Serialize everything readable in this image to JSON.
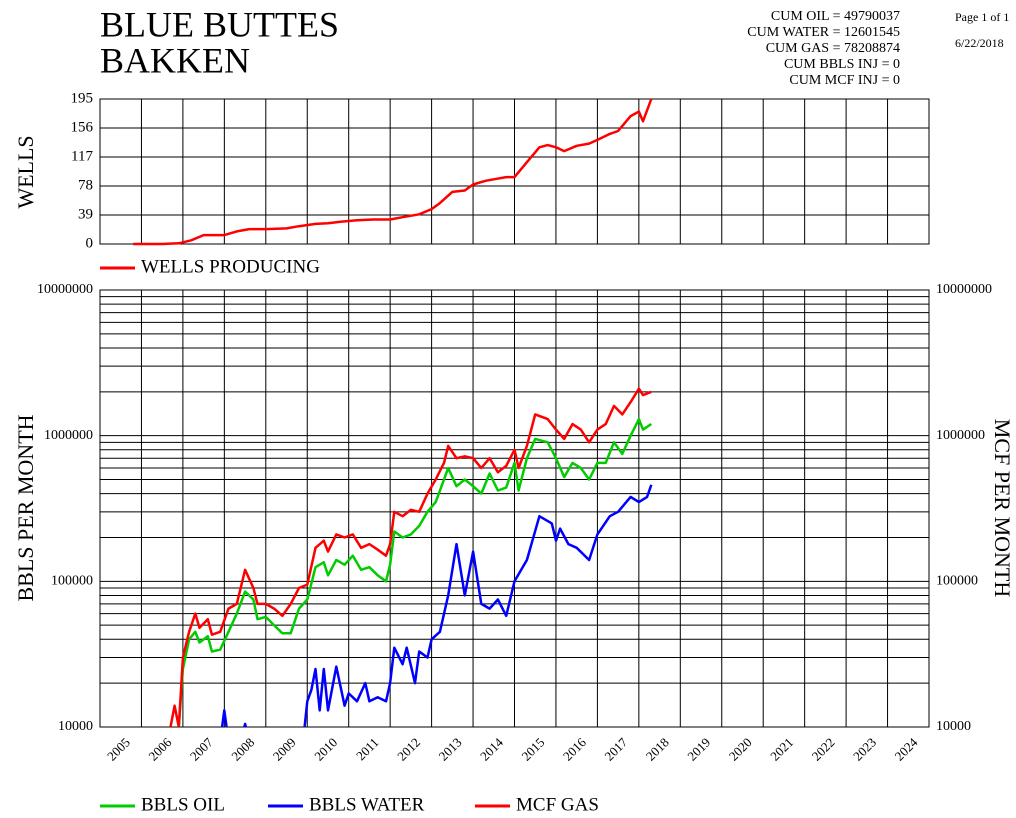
{
  "header": {
    "title_lines": [
      "BLUE BUTTES",
      "BAKKEN"
    ],
    "stats": [
      "CUM OIL = 49790037",
      "CUM WATER = 12601545",
      "CUM GAS = 78208874",
      "CUM BBLS INJ = 0",
      "CUM MCF INJ = 0"
    ],
    "page": "Page 1 of 1",
    "date": "6/22/2018"
  },
  "chart_data": [
    {
      "type": "line",
      "ylabel": "WELLS",
      "xlim": [
        2005,
        2025
      ],
      "xticks": [
        2005,
        2006,
        2007,
        2008,
        2009,
        2010,
        2011,
        2012,
        2013,
        2014,
        2015,
        2016,
        2017,
        2018,
        2019,
        2020,
        2021,
        2022,
        2023,
        2024
      ],
      "ylim": [
        0,
        195
      ],
      "yticks": [
        0,
        39,
        78,
        117,
        156,
        195
      ],
      "grid": true,
      "legend": "below",
      "series": [
        {
          "name": "WELLS PRODUCING",
          "color": "#ff0000",
          "x": [
            2005.8,
            2006.5,
            2006.9,
            2007.2,
            2007.5,
            2007.8,
            2008.0,
            2008.3,
            2008.6,
            2009.0,
            2009.5,
            2009.8,
            2010.2,
            2010.5,
            2010.8,
            2011.2,
            2011.6,
            2012.0,
            2012.3,
            2012.7,
            2013.0,
            2013.2,
            2013.5,
            2013.8,
            2014.0,
            2014.3,
            2014.5,
            2014.8,
            2015.0,
            2015.3,
            2015.6,
            2015.8,
            2016.0,
            2016.2,
            2016.5,
            2016.8,
            2017.0,
            2017.3,
            2017.5,
            2017.8,
            2018.0,
            2018.1,
            2018.3
          ],
          "values": [
            0,
            0,
            1,
            5,
            12,
            12,
            12,
            17,
            20,
            20,
            21,
            24,
            27,
            28,
            30,
            32,
            33,
            33,
            36,
            40,
            47,
            55,
            70,
            72,
            80,
            85,
            87,
            90,
            90,
            110,
            130,
            133,
            130,
            125,
            132,
            135,
            140,
            148,
            152,
            172,
            178,
            165,
            195
          ]
        }
      ]
    },
    {
      "type": "line",
      "log_scale": true,
      "ylabel": "BBLS PER MONTH",
      "y2label": "MCF PER MONTH",
      "xlim": [
        2005,
        2025
      ],
      "xticks": [
        2005,
        2006,
        2007,
        2008,
        2009,
        2010,
        2011,
        2012,
        2013,
        2014,
        2015,
        2016,
        2017,
        2018,
        2019,
        2020,
        2021,
        2022,
        2023,
        2024
      ],
      "ylim": [
        10000,
        10000000
      ],
      "yticks": [
        10000,
        100000,
        1000000,
        10000000
      ],
      "yminorticks": [
        20000,
        30000,
        40000,
        50000,
        60000,
        70000,
        80000,
        90000,
        200000,
        300000,
        400000,
        500000,
        600000,
        700000,
        800000,
        900000,
        2000000,
        3000000,
        4000000,
        5000000,
        6000000,
        7000000,
        8000000,
        9000000
      ],
      "y2lim": [
        10000,
        10000000
      ],
      "y2ticks": [
        10000,
        100000,
        1000000,
        10000000
      ],
      "grid": true,
      "legend": "below",
      "series": [
        {
          "name": "BBLS OIL",
          "color": "#00cc00",
          "x": [
            2006.9,
            2007.0,
            2007.15,
            2007.3,
            2007.4,
            2007.6,
            2007.7,
            2007.9,
            2008.1,
            2008.3,
            2008.5,
            2008.7,
            2008.8,
            2009.0,
            2009.2,
            2009.4,
            2009.6,
            2009.8,
            2010.0,
            2010.2,
            2010.4,
            2010.5,
            2010.7,
            2010.9,
            2011.1,
            2011.3,
            2011.5,
            2011.7,
            2011.9,
            2012.0,
            2012.1,
            2012.3,
            2012.5,
            2012.7,
            2012.9,
            2013.1,
            2013.3,
            2013.4,
            2013.6,
            2013.8,
            2014.0,
            2014.2,
            2014.4,
            2014.6,
            2014.8,
            2015.0,
            2015.1,
            2015.3,
            2015.5,
            2015.8,
            2016.0,
            2016.2,
            2016.4,
            2016.6,
            2016.8,
            2017.0,
            2017.2,
            2017.4,
            2017.6,
            2017.8,
            2018.0,
            2018.1,
            2018.3
          ],
          "values": [
            10000,
            25000,
            40000,
            45000,
            38000,
            42000,
            33000,
            34000,
            45000,
            60000,
            85000,
            75000,
            55000,
            57000,
            50000,
            44000,
            44000,
            65000,
            75000,
            125000,
            135000,
            110000,
            140000,
            130000,
            150000,
            120000,
            125000,
            110000,
            100000,
            130000,
            220000,
            200000,
            210000,
            240000,
            300000,
            350000,
            500000,
            600000,
            450000,
            500000,
            450000,
            400000,
            550000,
            420000,
            440000,
            650000,
            420000,
            700000,
            950000,
            900000,
            700000,
            520000,
            650000,
            600000,
            500000,
            650000,
            650000,
            900000,
            750000,
            1000000,
            1300000,
            1100000,
            1200000
          ]
        },
        {
          "name": "BBLS WATER",
          "color": "#0000ff",
          "x": [
            2007.9,
            2008.0,
            2008.1,
            2008.4,
            2008.5,
            2008.6,
            2009.9,
            2010.0,
            2010.1,
            2010.2,
            2010.3,
            2010.4,
            2010.5,
            2010.7,
            2010.9,
            2011.0,
            2011.2,
            2011.4,
            2011.5,
            2011.7,
            2011.9,
            2012.0,
            2012.1,
            2012.3,
            2012.4,
            2012.6,
            2012.7,
            2012.9,
            2013.0,
            2013.2,
            2013.4,
            2013.6,
            2013.8,
            2014.0,
            2014.2,
            2014.4,
            2014.6,
            2014.8,
            2015.0,
            2015.3,
            2015.6,
            2015.9,
            2016.0,
            2016.1,
            2016.3,
            2016.5,
            2016.8,
            2017.0,
            2017.3,
            2017.5,
            2017.8,
            2018.0,
            2018.2,
            2018.3
          ],
          "values": [
            8000,
            13000,
            8000,
            8000,
            10500,
            8000,
            8000,
            15000,
            18000,
            25000,
            13000,
            25000,
            13000,
            26000,
            14000,
            17000,
            15000,
            20000,
            15000,
            16000,
            15000,
            20000,
            35000,
            27000,
            35000,
            20000,
            33000,
            30000,
            40000,
            45000,
            80000,
            180000,
            80000,
            160000,
            70000,
            65000,
            75000,
            58000,
            100000,
            140000,
            280000,
            250000,
            190000,
            230000,
            180000,
            170000,
            140000,
            210000,
            280000,
            300000,
            380000,
            350000,
            380000,
            460000
          ]
        },
        {
          "name": "MCF GAS",
          "color": "#ff0000",
          "axis": "y2",
          "x": [
            2006.7,
            2006.8,
            2006.9,
            2007.0,
            2007.15,
            2007.3,
            2007.4,
            2007.6,
            2007.7,
            2007.9,
            2008.1,
            2008.3,
            2008.5,
            2008.7,
            2008.8,
            2009.0,
            2009.2,
            2009.4,
            2009.6,
            2009.8,
            2010.0,
            2010.2,
            2010.4,
            2010.5,
            2010.7,
            2010.9,
            2011.1,
            2011.3,
            2011.5,
            2011.7,
            2011.9,
            2012.0,
            2012.1,
            2012.3,
            2012.5,
            2012.7,
            2012.9,
            2013.1,
            2013.3,
            2013.4,
            2013.6,
            2013.8,
            2014.0,
            2014.2,
            2014.4,
            2014.6,
            2014.8,
            2015.0,
            2015.1,
            2015.3,
            2015.5,
            2015.8,
            2016.0,
            2016.2,
            2016.4,
            2016.6,
            2016.8,
            2017.0,
            2017.2,
            2017.4,
            2017.6,
            2017.8,
            2018.0,
            2018.1,
            2018.3
          ],
          "values": [
            10000,
            14000,
            10000,
            30000,
            45000,
            60000,
            48000,
            55000,
            43000,
            45000,
            65000,
            70000,
            120000,
            90000,
            70000,
            70000,
            65000,
            58000,
            70000,
            90000,
            95000,
            170000,
            190000,
            160000,
            210000,
            200000,
            210000,
            170000,
            180000,
            165000,
            150000,
            180000,
            300000,
            280000,
            310000,
            300000,
            400000,
            500000,
            650000,
            850000,
            700000,
            720000,
            700000,
            600000,
            700000,
            560000,
            620000,
            800000,
            600000,
            850000,
            1400000,
            1300000,
            1100000,
            950000,
            1200000,
            1100000,
            900000,
            1100000,
            1200000,
            1600000,
            1400000,
            1700000,
            2100000,
            1900000,
            2000000
          ]
        }
      ]
    }
  ]
}
